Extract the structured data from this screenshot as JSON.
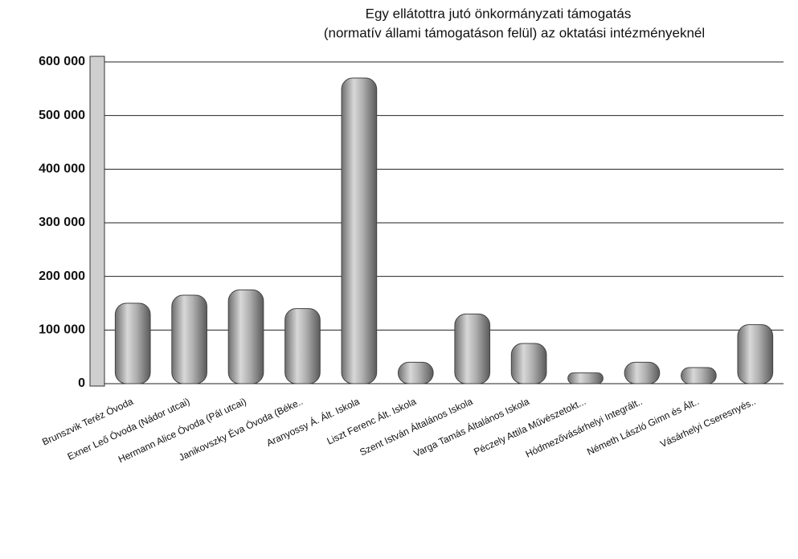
{
  "chart_data": {
    "type": "bar",
    "title": [
      "Egy ellátottra jutó önkormányzati támogatás",
      "(normatív állami támogatáson felül) az oktatási intézményeknél"
    ],
    "categories": [
      "Brunszvik Teréz Óvoda",
      "Exner Leő Óvoda (Nádor utcai)",
      "Hermann Alice Óvoda (Pál utcai)",
      "Janikovszky Éva Óvoda (Béke..",
      "Aranyossy Á. Ált. Iskola",
      "Liszt Ferenc Ált. Iskola",
      "Szent István Általános Iskola",
      "Varga Tamás Általános Iskola",
      "Péczely Attila Művészetokt...",
      "Hódmezővásárhelyi Integrált..",
      "Németh László Gimn és Ált..",
      "Vásárhelyi Cseresnyés.."
    ],
    "values": [
      150000,
      165000,
      175000,
      140000,
      570000,
      40000,
      130000,
      75000,
      20000,
      40000,
      30000,
      110000
    ],
    "color": "#a8a8a8",
    "ylim": [
      0,
      600000
    ],
    "yticks": [
      0,
      {
        "value": 100000,
        "label": "100 000"
      },
      {
        "value": 200000,
        "label": "200 000"
      },
      {
        "value": 300000,
        "label": "300 000"
      },
      {
        "value": 400000,
        "label": "400 000"
      },
      {
        "value": 500000,
        "label": "500 000"
      },
      {
        "value": 600000,
        "label": "600 000"
      }
    ],
    "grid": true
  }
}
